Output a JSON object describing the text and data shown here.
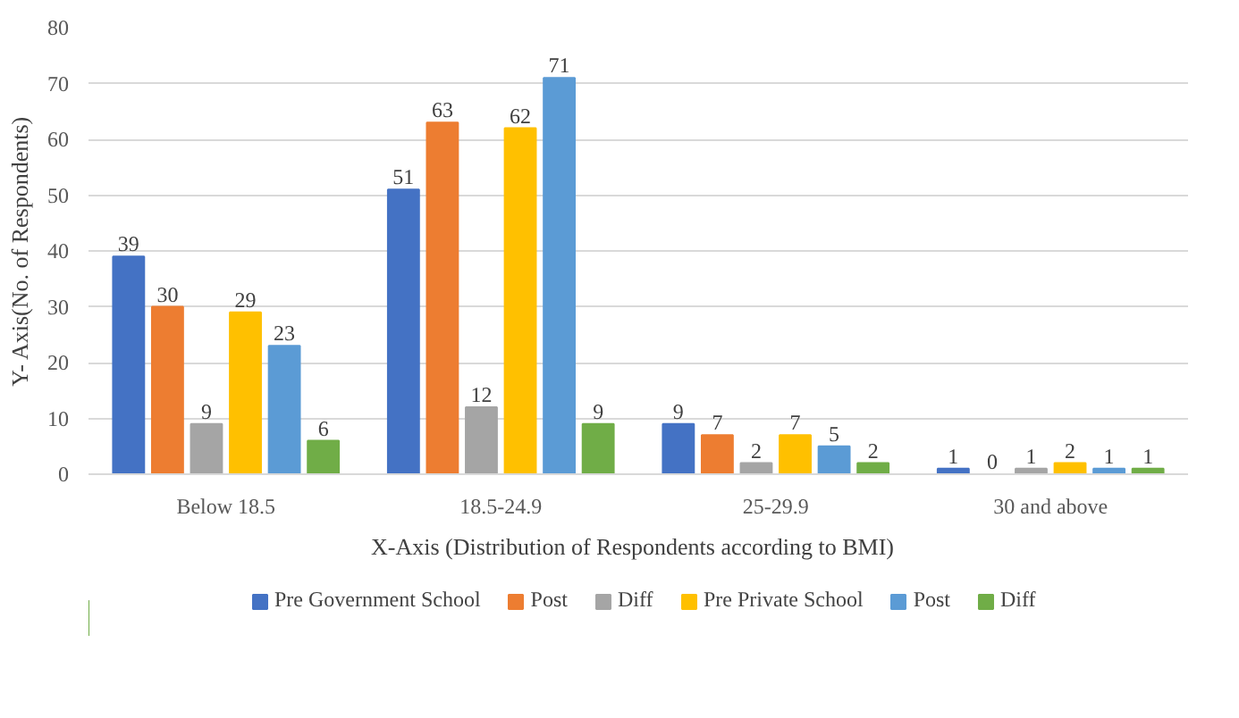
{
  "chart_data": {
    "type": "bar",
    "xlabel": "X-Axis  (Distribution  of Respondents according to BMI)",
    "ylabel": "Y- Axis(No. of Respondents)",
    "categories": [
      "Below 18.5",
      "18.5-24.9",
      "25-29.9",
      "30 and above"
    ],
    "series": [
      {
        "name": "Pre Government School",
        "color": "#4472c4",
        "values": [
          39,
          51,
          9,
          1
        ]
      },
      {
        "name": "Post",
        "color": "#ed7d31",
        "values": [
          30,
          63,
          7,
          0
        ]
      },
      {
        "name": "Diff",
        "color": "#a5a5a5",
        "values": [
          9,
          12,
          2,
          1
        ]
      },
      {
        "name": "Pre Private School",
        "color": "#ffc000",
        "values": [
          29,
          62,
          7,
          2
        ]
      },
      {
        "name": "Post",
        "color": "#5b9bd5",
        "values": [
          23,
          71,
          5,
          1
        ]
      },
      {
        "name": "Diff",
        "color": "#70ad47",
        "values": [
          6,
          9,
          2,
          1
        ]
      }
    ],
    "ylim": [
      0,
      80
    ],
    "yticks": [
      0,
      10,
      20,
      30,
      40,
      50,
      60,
      70,
      80
    ],
    "grid": "y",
    "legend": "bottom",
    "data_labels": true
  }
}
